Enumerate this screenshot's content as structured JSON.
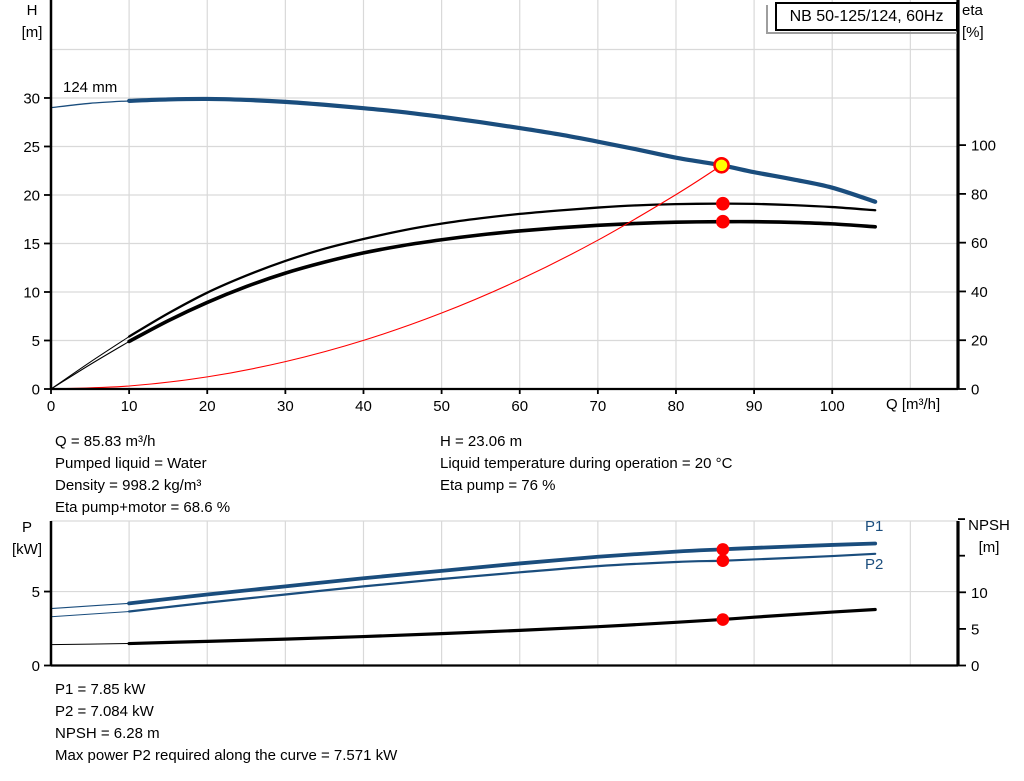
{
  "title_box": {
    "label": "NB 50-125/124, 60Hz"
  },
  "labels": {
    "h_axis": "H",
    "h_unit": "[m]",
    "eta_axis": "eta",
    "eta_unit": "[%]",
    "q_axis": "Q [m³/h]",
    "p_axis": "P",
    "p_unit": "[kW]",
    "npsh_axis": "NPSH",
    "npsh_unit": "[m]",
    "impeller": "124 mm",
    "p1": "P1",
    "p2": "P2"
  },
  "colors": {
    "curve_blue": "#1a4d7d",
    "curve_black": "#000000",
    "curve_red": "#ff0000",
    "marker_yellow": "#ffff00",
    "marker_red": "#ff0000",
    "grid": "#d9d9d9",
    "axis": "#000000"
  },
  "info_top": {
    "left": [
      "Q = 85.83 m³/h",
      "Pumped liquid = Water",
      "Density = 998.2 kg/m³",
      "Eta pump+motor = 68.6 %"
    ],
    "right": [
      "H = 23.06 m",
      "Liquid temperature during operation = 20 °C",
      "Eta pump = 76 %"
    ]
  },
  "info_bottom": [
    "P1 = 7.85 kW",
    "P2 = 7.084 kW",
    "NPSH = 6.28 m",
    "Max power P2 required along the curve = 7.571 kW"
  ],
  "chart_data": [
    {
      "type": "line",
      "title": "NB 50-125/124, 60Hz",
      "xlabel": "Q [m³/h]",
      "ylabel_left": "H [m]",
      "ylabel_right": "eta [%]",
      "xlim": [
        0,
        116.1
      ],
      "ylim_left": [
        0,
        40.1
      ],
      "ylim_right": [
        0,
        159.5
      ],
      "xticks": [
        0,
        10,
        20,
        30,
        40,
        50,
        60,
        70,
        80,
        90,
        100
      ],
      "yticks_left": [
        0,
        5,
        10,
        15,
        20,
        25,
        30
      ],
      "yticks_right": [
        0,
        20,
        40,
        60,
        80,
        100
      ],
      "grid_x": [
        10,
        20,
        30,
        40,
        50,
        60,
        70,
        80,
        90,
        100,
        110
      ],
      "grid_y_left": [
        5,
        10,
        15,
        20,
        25,
        30,
        35
      ],
      "series": [
        {
          "name": "qh-curve-124mm",
          "axis": "left",
          "color": "#1a4d7d",
          "width": 4.2,
          "thin_until": 10,
          "x": [
            0,
            5,
            10,
            15,
            20,
            25,
            30,
            35,
            40,
            45,
            50,
            55,
            60,
            65,
            70,
            75,
            80,
            85.83,
            90,
            95,
            100,
            105.5
          ],
          "y": [
            29.0,
            29.45,
            29.7,
            29.85,
            29.9,
            29.8,
            29.6,
            29.3,
            28.95,
            28.55,
            28.05,
            27.5,
            26.9,
            26.25,
            25.5,
            24.7,
            23.85,
            23.06,
            22.35,
            21.6,
            20.75,
            19.3
          ]
        },
        {
          "name": "eta-pump-curve",
          "axis": "right",
          "color": "#000000",
          "width": 2.3,
          "thin_until": 10,
          "x": [
            0,
            5,
            10,
            15,
            20,
            25,
            30,
            35,
            40,
            45,
            50,
            55,
            60,
            65,
            70,
            75,
            80,
            85.83,
            90,
            95,
            100,
            105.5
          ],
          "y": [
            0,
            11,
            21.5,
            31,
            39.5,
            46.5,
            52.5,
            57.5,
            61.5,
            65,
            67.8,
            70,
            71.8,
            73.2,
            74.4,
            75.3,
            75.8,
            76,
            75.9,
            75.4,
            74.6,
            73.3
          ]
        },
        {
          "name": "eta-pump-motor-curve",
          "axis": "right",
          "color": "#000000",
          "width": 3.6,
          "thin_until": 10,
          "x": [
            0,
            5,
            10,
            15,
            20,
            25,
            30,
            35,
            40,
            45,
            50,
            55,
            60,
            65,
            70,
            75,
            80,
            85.83,
            90,
            95,
            100,
            105.5
          ],
          "y": [
            0,
            10,
            19.5,
            28,
            35.5,
            42,
            47.5,
            52,
            55.8,
            58.8,
            61.2,
            63.2,
            64.8,
            66.1,
            67.1,
            67.9,
            68.4,
            68.6,
            68.6,
            68.3,
            67.7,
            66.5
          ]
        },
        {
          "name": "system-curve",
          "axis": "left",
          "color": "#ff0000",
          "width": 1.1,
          "x": [
            0,
            10,
            20,
            30,
            40,
            50,
            60,
            70,
            80,
            85.83
          ],
          "y": [
            0,
            0.31,
            1.25,
            2.82,
            5.01,
            7.83,
            11.27,
            15.34,
            20.04,
            23.06
          ]
        }
      ],
      "markers": [
        {
          "name": "duty-point-marker",
          "axis": "left",
          "x": 85.83,
          "y": 23.06,
          "r": 7,
          "fill": "#ffff00",
          "stroke": "#ff0000",
          "stroke_width": 2.6
        },
        {
          "name": "eta-pump-marker",
          "axis": "right",
          "x": 86,
          "y": 76,
          "r": 6.8,
          "fill": "#ff0000"
        },
        {
          "name": "eta-pump-motor-marker",
          "axis": "right",
          "x": 86,
          "y": 68.6,
          "r": 6.8,
          "fill": "#ff0000"
        }
      ]
    },
    {
      "type": "line",
      "title": "",
      "xlabel": "",
      "ylabel_left": "P [kW]",
      "ylabel_right": "NPSH [m]",
      "xlim": [
        0,
        116.1
      ],
      "ylim_left": [
        0,
        9.77
      ],
      "ylim_right": [
        0,
        19.74
      ],
      "xticks": [],
      "yticks_left": [
        0,
        5
      ],
      "yticks_right": [
        0,
        5,
        10
      ],
      "yticks_right_minor": [
        15,
        20
      ],
      "grid_x": [
        10,
        20,
        30,
        40,
        50,
        60,
        70,
        80,
        90,
        100,
        110
      ],
      "grid_y_left": [
        5
      ],
      "top_border": true,
      "series": [
        {
          "name": "p1-curve",
          "axis": "left",
          "color": "#1a4d7d",
          "width": 3.8,
          "thin_until": 10,
          "x": [
            0,
            10,
            20,
            30,
            40,
            50,
            60,
            70,
            80,
            85.83,
            90,
            100,
            105.5
          ],
          "y": [
            3.85,
            4.2,
            4.8,
            5.35,
            5.9,
            6.4,
            6.9,
            7.35,
            7.7,
            7.85,
            7.95,
            8.15,
            8.25
          ]
        },
        {
          "name": "p2-curve",
          "axis": "left",
          "color": "#1a4d7d",
          "width": 2.2,
          "thin_until": 10,
          "x": [
            0,
            10,
            20,
            30,
            40,
            50,
            60,
            70,
            80,
            85.83,
            90,
            100,
            105.5
          ],
          "y": [
            3.3,
            3.65,
            4.25,
            4.8,
            5.35,
            5.85,
            6.3,
            6.72,
            7.0,
            7.084,
            7.17,
            7.4,
            7.55
          ]
        },
        {
          "name": "npsh-curve",
          "axis": "right",
          "color": "#000000",
          "width": 3.2,
          "thin_until": 10,
          "x": [
            0,
            10,
            20,
            30,
            40,
            50,
            60,
            70,
            80,
            85.83,
            90,
            100,
            105.5
          ],
          "y": [
            2.85,
            3.0,
            3.3,
            3.6,
            3.95,
            4.35,
            4.8,
            5.3,
            5.9,
            6.28,
            6.6,
            7.3,
            7.65
          ]
        }
      ],
      "markers": [
        {
          "name": "p1-marker",
          "axis": "left",
          "x": 86,
          "y": 7.85,
          "r": 6.3,
          "fill": "#ff0000"
        },
        {
          "name": "p2-marker",
          "axis": "left",
          "x": 86,
          "y": 7.084,
          "r": 6.3,
          "fill": "#ff0000"
        },
        {
          "name": "npsh-marker",
          "axis": "right",
          "x": 86,
          "y": 6.28,
          "r": 6.3,
          "fill": "#ff0000"
        }
      ]
    }
  ]
}
